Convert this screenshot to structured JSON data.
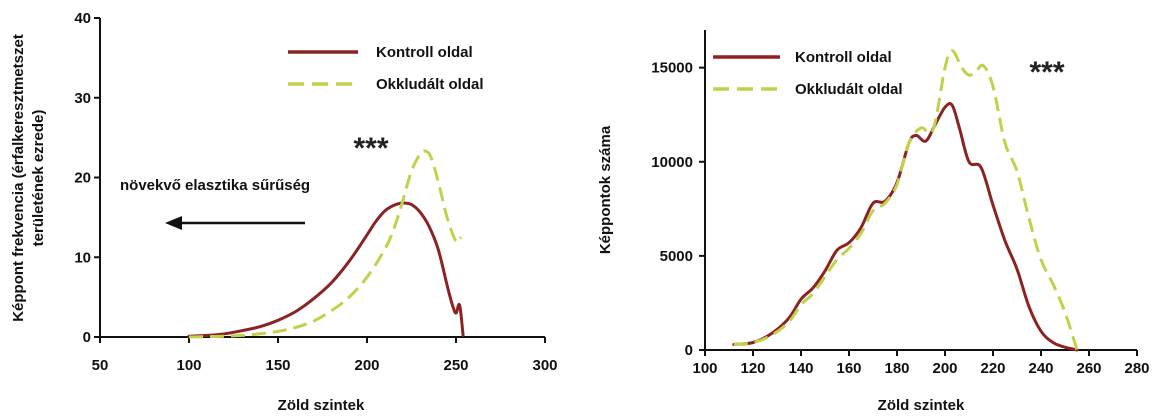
{
  "chart_data": [
    {
      "type": "line",
      "title": "",
      "xlabel": "Zöld szintek",
      "ylabel": "Képpont frekvencia (érfalkeresztmetszet területének ezrede)",
      "xlim": [
        50,
        300
      ],
      "ylim": [
        0,
        40
      ],
      "xticks": [
        "50",
        "100",
        "150",
        "200",
        "250",
        "300"
      ],
      "yticks": [
        "0",
        "10",
        "20",
        "30",
        "40"
      ],
      "grid": false,
      "legend_position": "top-right",
      "significance": "***",
      "annotation": "növekvő elasztika sűrűség",
      "series": [
        {
          "name": "Kontroll oldal",
          "color": "#8b2323",
          "style": "solid",
          "x": [
            100,
            110,
            120,
            130,
            140,
            150,
            160,
            170,
            180,
            190,
            200,
            205,
            210,
            215,
            220,
            225,
            230,
            235,
            240,
            245,
            248,
            250,
            252,
            254
          ],
          "y": [
            0.1,
            0.2,
            0.4,
            0.8,
            1.3,
            2.1,
            3.2,
            4.8,
            6.8,
            9.5,
            12.8,
            14.5,
            15.8,
            16.5,
            16.8,
            16.6,
            15.6,
            13.8,
            11.0,
            6.5,
            4.0,
            3.0,
            4.0,
            0.2
          ]
        },
        {
          "name": "Okkludált oldal",
          "color": "#c3d04a",
          "style": "dashed",
          "x": [
            100,
            110,
            120,
            130,
            140,
            150,
            160,
            170,
            180,
            190,
            200,
            210,
            215,
            220,
            225,
            230,
            233,
            236,
            240,
            245,
            250,
            253
          ],
          "y": [
            0,
            0.05,
            0.1,
            0.2,
            0.4,
            0.7,
            1.2,
            2.0,
            3.3,
            5.0,
            7.5,
            11.0,
            13.5,
            17.0,
            20.8,
            23.0,
            23.3,
            22.5,
            19.5,
            15.0,
            12.0,
            12.5
          ]
        }
      ]
    },
    {
      "type": "line",
      "title": "",
      "xlabel": "Zöld szintek",
      "ylabel": "Képpontok száma",
      "xlim": [
        100,
        280
      ],
      "ylim": [
        0,
        17000
      ],
      "xticks": [
        "100",
        "120",
        "140",
        "160",
        "180",
        "200",
        "220",
        "240",
        "260",
        "280"
      ],
      "yticks": [
        "0",
        "5000",
        "10000",
        "15000"
      ],
      "grid": false,
      "legend_position": "top-left",
      "significance": "***",
      "series": [
        {
          "name": "Kontroll oldal",
          "color": "#8b2323",
          "style": "solid",
          "x": [
            112,
            120,
            128,
            135,
            140,
            145,
            150,
            155,
            160,
            165,
            170,
            175,
            180,
            185,
            188,
            192,
            196,
            200,
            203,
            206,
            210,
            215,
            220,
            225,
            230,
            235,
            240,
            245,
            250,
            255
          ],
          "y": [
            300,
            400,
            900,
            1700,
            2700,
            3300,
            4200,
            5300,
            5700,
            6500,
            7800,
            7900,
            8900,
            11000,
            11400,
            11100,
            12000,
            12900,
            13000,
            11800,
            10000,
            9700,
            7700,
            5800,
            4300,
            2300,
            1000,
            400,
            150,
            0
          ]
        },
        {
          "name": "Okkludált oldal",
          "color": "#c3d04a",
          "style": "dashed",
          "x": [
            112,
            120,
            128,
            135,
            140,
            145,
            150,
            155,
            160,
            165,
            170,
            175,
            180,
            185,
            190,
            195,
            200,
            203,
            207,
            210,
            213,
            216,
            220,
            225,
            230,
            235,
            240,
            245,
            250,
            255
          ],
          "y": [
            300,
            400,
            800,
            1500,
            2400,
            3000,
            3900,
            4800,
            5400,
            6200,
            7400,
            7800,
            8800,
            11000,
            11800,
            11700,
            15000,
            15900,
            15000,
            14600,
            14800,
            15100,
            14000,
            11000,
            9500,
            7000,
            4800,
            3500,
            2000,
            0
          ]
        }
      ]
    }
  ]
}
